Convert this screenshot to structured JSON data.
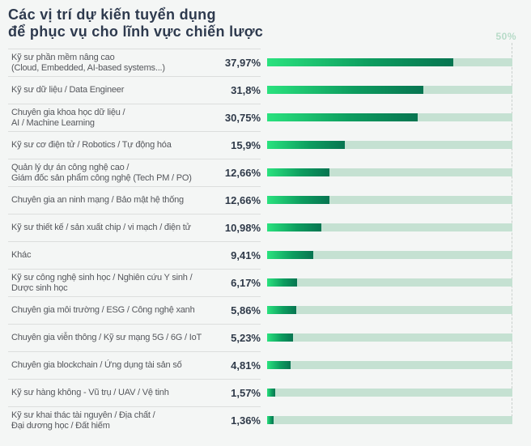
{
  "title": "Các vị trí dự kiến tuyển dụng\nđể phục vụ cho lĩnh vực chiến lược",
  "axis": {
    "max_label": "50%",
    "max_value": 50
  },
  "colors": {
    "background": "#f4f6f5",
    "title": "#2e3a4e",
    "category_label": "#55575c",
    "value_label": "#2f3a49",
    "bar_gradient_start": "#2ae27e",
    "bar_gradient_end": "#077551",
    "bar_track": "#c5e1d2",
    "axis_max_label": "#b7dbc8",
    "divider": "#dcdedd",
    "dashed_line": "#c9cfcc"
  },
  "chart_data": {
    "type": "bar",
    "orientation": "horizontal",
    "title": "Các vị trí dự kiến tuyển dụng để phục vụ cho lĩnh vực chiến lược",
    "xlabel": "",
    "ylabel": "",
    "xlim": [
      0,
      50
    ],
    "axis_ticks": [
      "50%"
    ],
    "grid": false,
    "legend": false,
    "categories": [
      "Kỹ sư phần mềm nâng cao\n(Cloud, Embedded, AI-based systems...)",
      "Kỹ sư dữ liệu / Data Engineer",
      "Chuyên gia khoa học dữ liệu /\nAI / Machine Learning",
      "Kỹ sư cơ điện tử / Robotics / Tự động hóa",
      "Quản lý dự án công nghệ cao /\nGiám đốc sản phẩm công nghệ (Tech PM / PO)",
      "Chuyên gia an ninh mạng / Bảo mật hệ thống",
      "Kỹ sư thiết kế / sản xuất chip / vi mạch / điện tử",
      "Khác",
      "Kỹ sư công nghệ sinh học / Nghiên cứu Y sinh /\nDược sinh học",
      "Chuyên gia môi trường / ESG / Công nghệ xanh",
      "Chuyên gia viễn thông / Kỹ sư mạng 5G / 6G / IoT",
      "Chuyên gia blockchain / Ứng dụng tài sản số",
      "Kỹ sư hàng không - Vũ trụ / UAV / Vệ tinh",
      "Kỹ sư khai thác tài nguyên / Địa chất /\nĐại dương học / Đất hiếm"
    ],
    "values": [
      37.97,
      31.8,
      30.75,
      15.9,
      12.66,
      12.66,
      10.98,
      9.41,
      6.17,
      5.86,
      5.23,
      4.81,
      1.57,
      1.36
    ],
    "value_labels": [
      "37,97%",
      "31,8%",
      "30,75%",
      "15,9%",
      "12,66%",
      "12,66%",
      "10,98%",
      "9,41%",
      "6,17%",
      "5,86%",
      "5,23%",
      "4,81%",
      "1,57%",
      "1,36%"
    ]
  }
}
